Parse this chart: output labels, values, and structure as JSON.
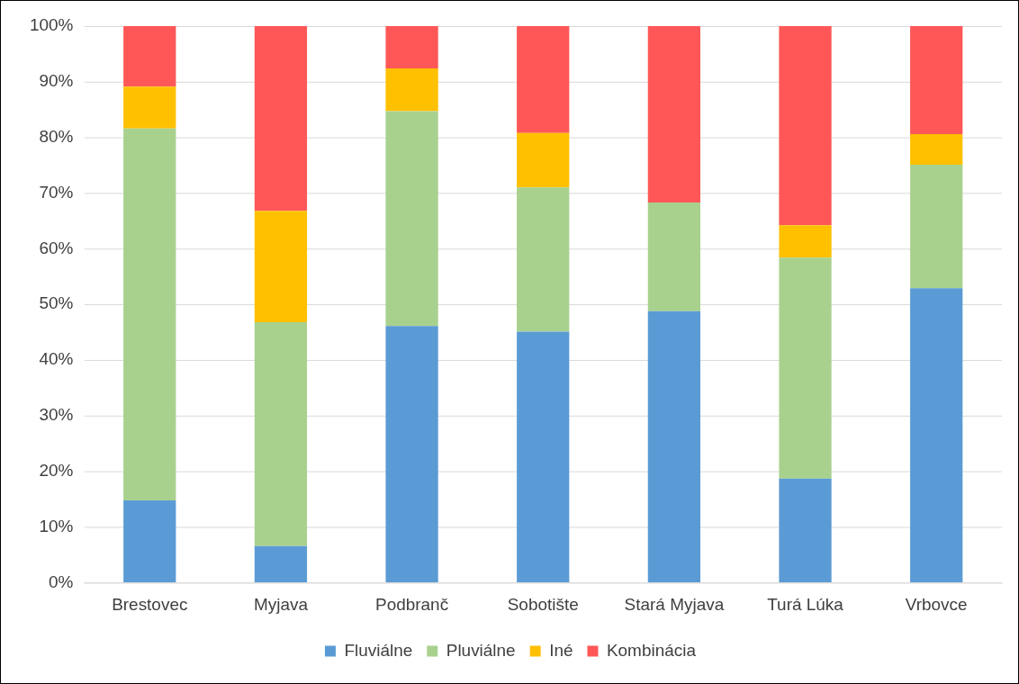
{
  "chart_data": {
    "type": "bar",
    "stacked": true,
    "categories": [
      "Brestovec",
      "Myjava",
      "Podbranč",
      "Sobotište",
      "Stará Myjava",
      "Turá Lúka",
      "Vrbovce"
    ],
    "series": [
      {
        "name": "Fluviálne",
        "color": "#5b9bd5",
        "values": [
          14.8,
          6.6,
          46.1,
          45.1,
          48.8,
          18.7,
          52.9
        ]
      },
      {
        "name": "Pluviálne",
        "color": "#a9d18e",
        "values": [
          66.8,
          40.2,
          38.6,
          25.9,
          19.5,
          39.7,
          22.2
        ]
      },
      {
        "name": "Iné",
        "color": "#ffc000",
        "values": [
          7.5,
          20.0,
          7.7,
          9.8,
          0,
          5.8,
          5.5
        ]
      },
      {
        "name": "Kombinácia",
        "color": "#ff5757",
        "values": [
          10.9,
          33.2,
          7.6,
          19.2,
          31.7,
          35.8,
          19.4
        ]
      }
    ],
    "ylim": [
      0,
      100
    ],
    "yticks": [
      {
        "value": 0,
        "label": "0%"
      },
      {
        "value": 10,
        "label": "10%"
      },
      {
        "value": 20,
        "label": "20%"
      },
      {
        "value": 30,
        "label": "30%"
      },
      {
        "value": 40,
        "label": "40%"
      },
      {
        "value": 50,
        "label": "50%"
      },
      {
        "value": 60,
        "label": "60%"
      },
      {
        "value": 70,
        "label": "70%"
      },
      {
        "value": 80,
        "label": "80%"
      },
      {
        "value": 90,
        "label": "90%"
      },
      {
        "value": 100,
        "label": "100%"
      }
    ],
    "grid": "y",
    "legend": "bottom"
  }
}
